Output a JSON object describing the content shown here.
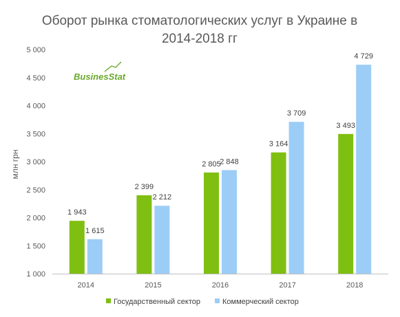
{
  "chart_data": {
    "type": "bar",
    "title": "Оборот рынка стоматологических услуг в Украине в 2014-2018 гг",
    "title_lines": [
      "Оборот рынка стоматологических услуг в Украине в",
      "2014-2018 гг"
    ],
    "xlabel": "",
    "ylabel": "млн грн",
    "categories": [
      "2014",
      "2015",
      "2016",
      "2017",
      "2018"
    ],
    "series": [
      {
        "name": "Государственный сектор",
        "color": "#7fbf12",
        "values": [
          1943,
          2399,
          2805,
          3164,
          3493
        ]
      },
      {
        "name": "Коммерческий сектор",
        "color": "#9ccdf7",
        "values": [
          1615,
          2212,
          2848,
          3709,
          4729
        ]
      }
    ],
    "value_labels": [
      [
        "1 943",
        "2 399",
        "2 805",
        "3 164",
        "3 493"
      ],
      [
        "1 615",
        "2 212",
        "2 848",
        "3 709",
        "4 729"
      ]
    ],
    "ylim": [
      1000,
      5000
    ],
    "yticks": [
      1000,
      1500,
      2000,
      2500,
      3000,
      3500,
      4000,
      4500,
      5000
    ],
    "ytick_labels": [
      "1 000",
      "1 500",
      "2 000",
      "2 500",
      "3 000",
      "3 500",
      "4 000",
      "4 500",
      "5 000"
    ],
    "grid": false,
    "legend_position": "bottom"
  },
  "logo": {
    "text": "BusinesStat",
    "color": "#6aa82a"
  },
  "colors": {
    "axis": "#bfbfbf",
    "text": "#595959"
  }
}
